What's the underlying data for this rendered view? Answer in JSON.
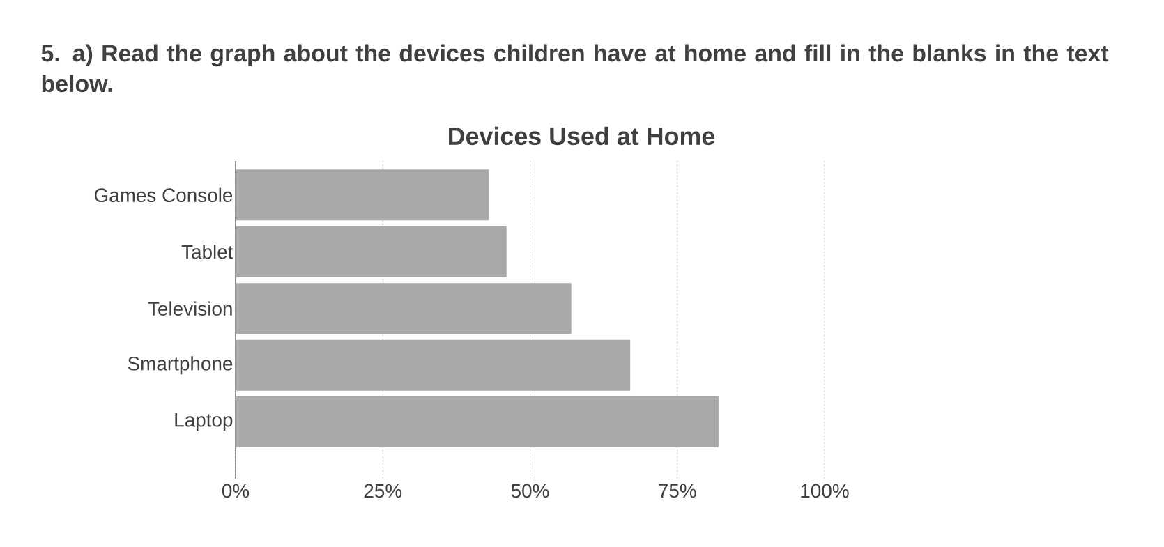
{
  "chart_data": {
    "type": "bar",
    "orientation": "horizontal",
    "title": "Devices Used at Home",
    "annotations": [
      "5. a) Read the graph about the devices children have at home and fill in the blanks in the text below."
    ],
    "categories": [
      "Games Console",
      "Tablet",
      "Television",
      "Smartphone",
      "Laptop"
    ],
    "values": [
      43,
      46,
      57,
      67,
      82
    ],
    "color": "#a9a9a9",
    "xlim": [
      0,
      100
    ],
    "xticks": [
      {
        "value": 0,
        "label": "0%"
      },
      {
        "value": 25,
        "label": "25%"
      },
      {
        "value": 50,
        "label": "50%"
      },
      {
        "value": 75,
        "label": "75%"
      },
      {
        "value": 100,
        "label": "100%"
      }
    ],
    "grid": "x"
  }
}
